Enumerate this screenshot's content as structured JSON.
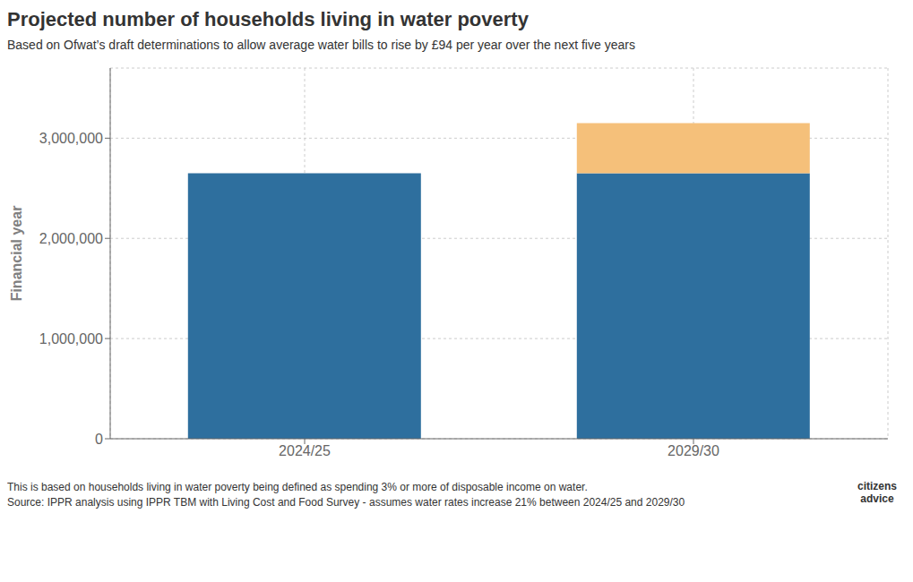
{
  "chart_data": {
    "type": "bar",
    "title": "Projected number of households living in water poverty",
    "subtitle": "Based on Ofwat’s draft determinations to allow average water bills to rise by £94 per year over the next five years",
    "ylabel": "Financial year",
    "categories": [
      "2024/25",
      "2029/30"
    ],
    "series": [
      {
        "color": "#2e6f9e",
        "values": [
          2650000,
          2650000
        ]
      },
      {
        "color": "#f5c07a",
        "values": [
          0,
          500000
        ]
      }
    ],
    "stacked": true,
    "ylim": [
      0,
      3700000
    ],
    "yticks": [
      {
        "value": 0,
        "label": "0"
      },
      {
        "value": 1000000,
        "label": "1,000,000"
      },
      {
        "value": 2000000,
        "label": "2,000,000"
      },
      {
        "value": 3000000,
        "label": "3,000,000"
      }
    ],
    "grid": true,
    "footnotes": [
      "This is based on households living in water poverty being defined as spending 3% or more of disposable income on water.",
      "Source: IPPR analysis using IPPR TBM with Living Cost and Food Survey - assumes water rates increase 21% between 2024/25 and 2029/30"
    ],
    "annotations": [
      "citizens",
      "advice"
    ]
  }
}
